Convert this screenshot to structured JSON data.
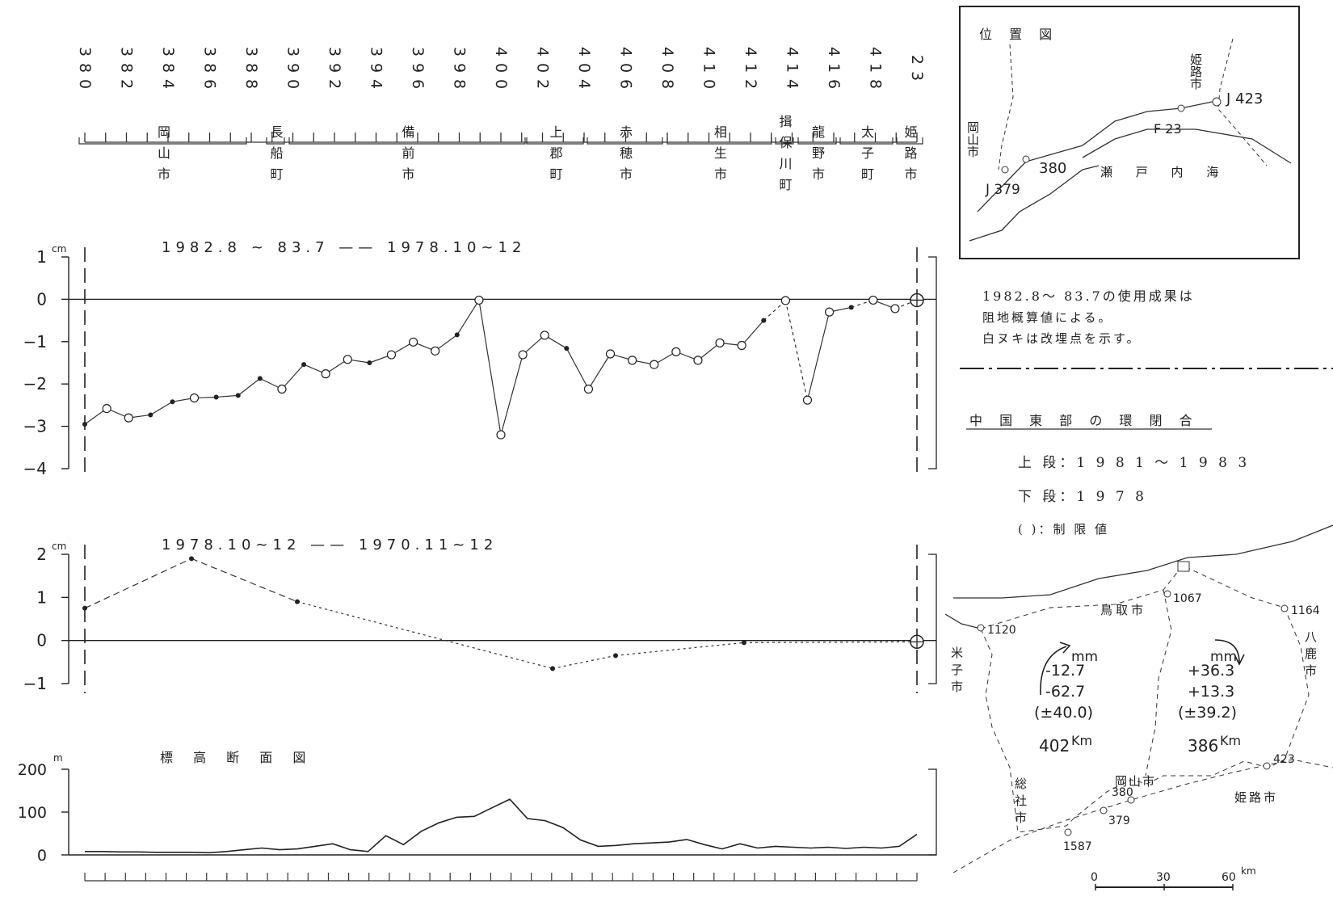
{
  "benchmarks": {
    "labels": [
      "380",
      "382",
      "384",
      "386",
      "388",
      "390",
      "392",
      "394",
      "396",
      "398",
      "400",
      "402",
      "404",
      "406",
      "408",
      "410",
      "412",
      "414",
      "416",
      "418",
      "23"
    ]
  },
  "municipalities": [
    {
      "name": "岡山市"
    },
    {
      "name": "長船町"
    },
    {
      "name": "備前市"
    },
    {
      "name": "上郡町"
    },
    {
      "name": "赤穂市"
    },
    {
      "name": "相生市"
    },
    {
      "name": "揖保川町"
    },
    {
      "name": "龍野市"
    },
    {
      "name": "太子町"
    },
    {
      "name": "姫路市"
    }
  ],
  "chart_data": [
    {
      "type": "line",
      "title": "1982.8 ~ 83.7 —— 1978.10~12",
      "y_unit": "cm",
      "ylim": [
        -4,
        1
      ],
      "y_ticks": [
        "1",
        "0",
        "−1",
        "−2",
        "−3",
        "−4"
      ],
      "series": [
        {
          "name": "",
          "values": [
            -2.95,
            -2.58,
            -2.8,
            -2.73,
            -2.42,
            -2.33,
            -2.31,
            -2.27,
            -1.87,
            -2.12,
            -1.54,
            -1.76,
            -1.42,
            -1.5,
            -1.31,
            -1.01,
            -1.22,
            -0.84,
            -0.02,
            -3.2,
            -1.31,
            -0.85,
            -1.16,
            -2.12,
            -1.29,
            -1.44,
            -1.54,
            -1.24,
            -1.44,
            -1.03,
            -1.09,
            -0.5,
            -0.03,
            -2.38,
            -0.3,
            -0.19,
            -0.02,
            -0.22,
            -0.02
          ]
        }
      ]
    },
    {
      "type": "line",
      "title": "1978.10~12 —— 1970.11~12",
      "y_unit": "cm",
      "ylim": [
        -1,
        2
      ],
      "y_ticks": [
        "2",
        "1",
        "0",
        "−1"
      ],
      "series": [
        {
          "name": "",
          "values": [
            0.75,
            1.9,
            0.9,
            -0.65,
            -0.35,
            -0.05,
            -0.03
          ]
        }
      ]
    },
    {
      "type": "area",
      "title": "標 高 断 面 図",
      "y_unit": "m",
      "ylim": [
        0,
        200
      ],
      "y_ticks": [
        "200",
        "100",
        "0"
      ],
      "series": [
        {
          "name": "",
          "values": [
            8,
            8,
            7,
            7,
            6,
            6,
            6,
            5,
            8,
            12,
            16,
            12,
            14,
            20,
            26,
            12,
            8,
            45,
            24,
            55,
            75,
            88,
            90,
            110,
            130,
            85,
            80,
            64,
            35,
            20,
            22,
            26,
            28,
            30,
            36,
            24,
            14,
            26,
            16,
            20,
            18,
            16,
            18,
            15,
            18,
            16,
            20,
            48
          ]
        }
      ]
    }
  ],
  "loc_map": {
    "title": "位 置 図",
    "okayama": "岡山市",
    "himeji": "姫路市",
    "sea": "瀬 戸 内 海",
    "j423": "J 423",
    "f23": "F 23",
    "p380": "380",
    "j379": "J 379"
  },
  "notes": [
    "1982.8～ 83.7の使用成果は",
    "阻地概算値による。",
    "白ヌキは改埋点を示す。"
  ],
  "loop_map": {
    "title": "中 国 東 部 の 環 閉 合",
    "legend": [
      "上 段：1 9 8 1 ～ 1 9 8 3",
      "下 段：1 9 7 8",
      "(    )：制 限 値"
    ],
    "west": {
      "unit": "mm",
      "upper": "-12.7",
      "lower": "-62.7",
      "limit": "(±40.0)",
      "dist": "402",
      "dist_unit": "Km"
    },
    "east": {
      "unit": "mm",
      "upper": "+36.3",
      "lower": "+13.3",
      "limit": "(±39.2)",
      "dist": "386",
      "dist_unit": "Km"
    },
    "places": {
      "tottori": "鳥取市",
      "yonago": "米子市",
      "yokaichi": "八鹿市",
      "soja": "総社市",
      "okayama": "岡山市",
      "himeji": "姫路市"
    },
    "points": {
      "p1067": "1067",
      "p1164": "1164",
      "p1120": "1120",
      "p423": "423",
      "p380": "380",
      "p379": "379",
      "p1587": "1587"
    },
    "scale": [
      "0",
      "30",
      "60"
    ],
    "scale_unit": "km"
  }
}
